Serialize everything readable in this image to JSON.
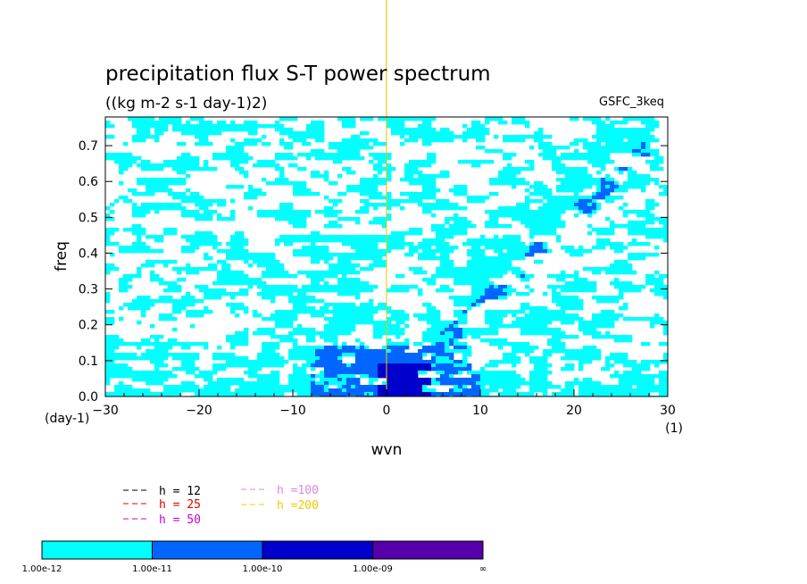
{
  "chart_data": {
    "type": "heatmap",
    "title": "precipitation flux S-T power spectrum",
    "units": "((kg m-2 s-1 day-1)2)",
    "model_label": "GSFC_3keq",
    "xlabel": "wvn",
    "xunit": "(1)",
    "ylabel": "freq",
    "yunit": "(day-1)",
    "xlim": [
      -30,
      30
    ],
    "ylim": [
      0.0,
      0.78
    ],
    "xticks": [
      "-30",
      "-20",
      "-10",
      "0",
      "10",
      "20",
      "30"
    ],
    "yticks": [
      "0.0",
      "0.1",
      "0.2",
      "0.3",
      "0.4",
      "0.5",
      "0.6",
      "0.7"
    ],
    "contour_levels": [
      "1.00e-12",
      "1.00e-11",
      "1.00e-10",
      "1.00e-09",
      "∞"
    ],
    "fill_colors": [
      "#00ffff",
      "#0066ff",
      "#0000cc",
      "#5500aa"
    ],
    "dispersion_curves": [
      {
        "name": "h = 12",
        "h": 12,
        "color": "#000000"
      },
      {
        "name": "h = 25",
        "h": 25,
        "color": "#dd0000"
      },
      {
        "name": "h = 50",
        "h": 50,
        "color": "#cc00cc"
      },
      {
        "name": "h =100",
        "h": 100,
        "color": "#dd88dd"
      },
      {
        "name": "h =200",
        "h": 200,
        "color": "#eecc00"
      }
    ],
    "grid": false,
    "legend_position": "bottom-left"
  }
}
